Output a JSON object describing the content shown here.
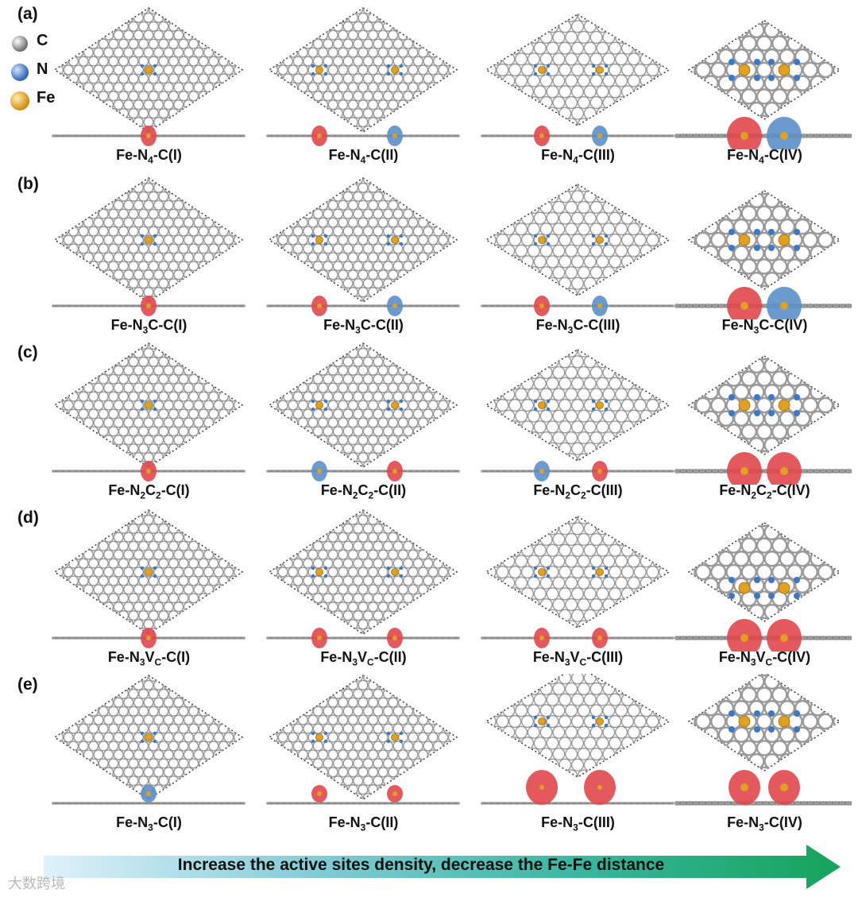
{
  "figure": {
    "legend": [
      {
        "element": "C",
        "color": "#8c8c8c"
      },
      {
        "element": "N",
        "color": "#3c78c4"
      },
      {
        "element": "Fe",
        "color": "#e0a020"
      }
    ],
    "rows": [
      {
        "label": "(a)",
        "panels": [
          {
            "caption_parts": [
              "Fe-N",
              "4",
              "-C(I)"
            ]
          },
          {
            "caption_parts": [
              "Fe-N",
              "4",
              "-C(II)"
            ]
          },
          {
            "caption_parts": [
              "Fe-N",
              "4",
              "-C(III)"
            ]
          },
          {
            "caption_parts": [
              "Fe-N",
              "4",
              "-C(IV)"
            ]
          }
        ]
      },
      {
        "label": "(b)",
        "panels": [
          {
            "caption_parts": [
              "Fe-N",
              "3",
              "C-C(I)"
            ]
          },
          {
            "caption_parts": [
              "Fe-N",
              "3",
              "C-C(II)"
            ]
          },
          {
            "caption_parts": [
              "Fe-N",
              "3",
              "C-C(III)"
            ]
          },
          {
            "caption_parts": [
              "Fe-N",
              "3",
              "C-C(IV)"
            ]
          }
        ]
      },
      {
        "label": "(c)",
        "panels": [
          {
            "caption_parts": [
              "Fe-N",
              "2",
              "C",
              "2",
              "-C(I)"
            ]
          },
          {
            "caption_parts": [
              "Fe-N",
              "2",
              "C",
              "2",
              "-C(II)"
            ]
          },
          {
            "caption_parts": [
              "Fe-N",
              "2",
              "C",
              "2",
              "-C(III)"
            ]
          },
          {
            "caption_parts": [
              "Fe-N",
              "2",
              "C",
              "2",
              "-C(IV)"
            ]
          }
        ]
      },
      {
        "label": "(d)",
        "panels": [
          {
            "caption_parts": [
              "Fe-N",
              "3",
              "V",
              "C",
              "-C(I)"
            ]
          },
          {
            "caption_parts": [
              "Fe-N",
              "3",
              "V",
              "C",
              "-C(II)"
            ]
          },
          {
            "caption_parts": [
              "Fe-N",
              "3",
              "V",
              "C",
              "-C(III)"
            ]
          },
          {
            "caption_parts": [
              "Fe-N",
              "3",
              "V",
              "C",
              "-C(IV)"
            ]
          }
        ]
      },
      {
        "label": "(e)",
        "panels": [
          {
            "caption_parts": [
              "Fe-N",
              "3",
              "-C(I)"
            ]
          },
          {
            "caption_parts": [
              "Fe-N",
              "3",
              "-C(II)"
            ]
          },
          {
            "caption_parts": [
              "Fe-N",
              "3",
              "-C(III)"
            ]
          },
          {
            "caption_parts": [
              "Fe-N",
              "3",
              "-C(IV)"
            ]
          }
        ]
      }
    ],
    "arrow_text": "Increase the active sites density, decrease the Fe-Fe distance",
    "watermark": "大数跨境"
  }
}
